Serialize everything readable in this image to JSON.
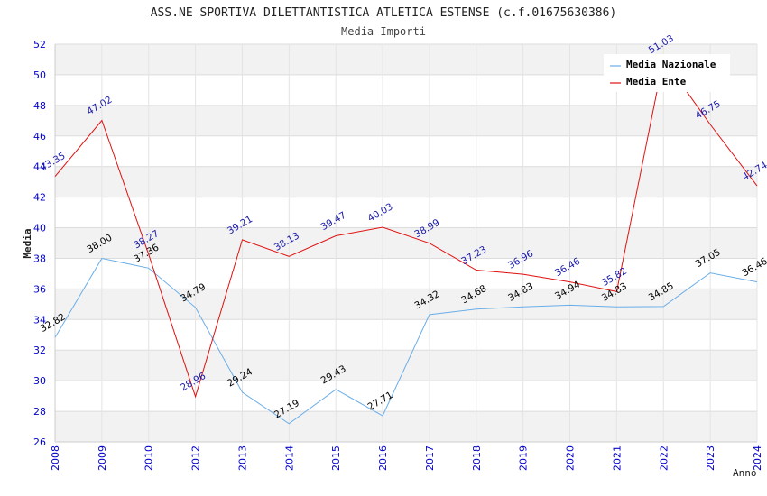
{
  "chart_data": {
    "type": "line",
    "title": "ASS.NE SPORTIVA DILETTANTISTICA ATLETICA ESTENSE (c.f.01675630386)",
    "subtitle": "Media Importi",
    "xlabel": "Anno",
    "ylabel": "Media",
    "ylim": [
      26,
      52
    ],
    "yticks": [
      "26",
      "28",
      "30",
      "32",
      "34",
      "36",
      "38",
      "40",
      "42",
      "44",
      "46",
      "48",
      "50",
      "52"
    ],
    "x": [
      "2008",
      "2009",
      "2010",
      "2012",
      "2013",
      "2014",
      "2015",
      "2016",
      "2017",
      "2018",
      "2019",
      "2020",
      "2021",
      "2022",
      "2023",
      "2024"
    ],
    "legend_position": "top-right",
    "series": [
      {
        "name": "Media Nazionale",
        "color": "#6aaee8",
        "values": [
          32.82,
          38.0,
          37.36,
          34.79,
          29.24,
          27.19,
          29.43,
          27.71,
          34.32,
          34.68,
          34.83,
          34.94,
          34.83,
          34.85,
          37.05,
          36.46
        ],
        "labels": [
          "32.82",
          "38.00",
          "37.36",
          "34.79",
          "29.24",
          "27.19",
          "29.43",
          "27.71",
          "34.32",
          "34.68",
          "34.83",
          "34.94",
          "34.83",
          "34.85",
          "37.05",
          "36.46"
        ]
      },
      {
        "name": "Media Ente",
        "color": "#e01010",
        "values": [
          43.35,
          47.02,
          38.27,
          28.96,
          39.21,
          38.13,
          39.47,
          40.03,
          38.99,
          37.23,
          36.96,
          36.46,
          35.82,
          51.03,
          46.75,
          42.74
        ],
        "labels": [
          "43.35",
          "47.02",
          "38.27",
          "28.96",
          "39.21",
          "38.13",
          "39.47",
          "40.03",
          "38.99",
          "37.23",
          "36.96",
          "36.46",
          "35.82",
          "51.03",
          "46.75",
          "42.74"
        ]
      }
    ]
  }
}
